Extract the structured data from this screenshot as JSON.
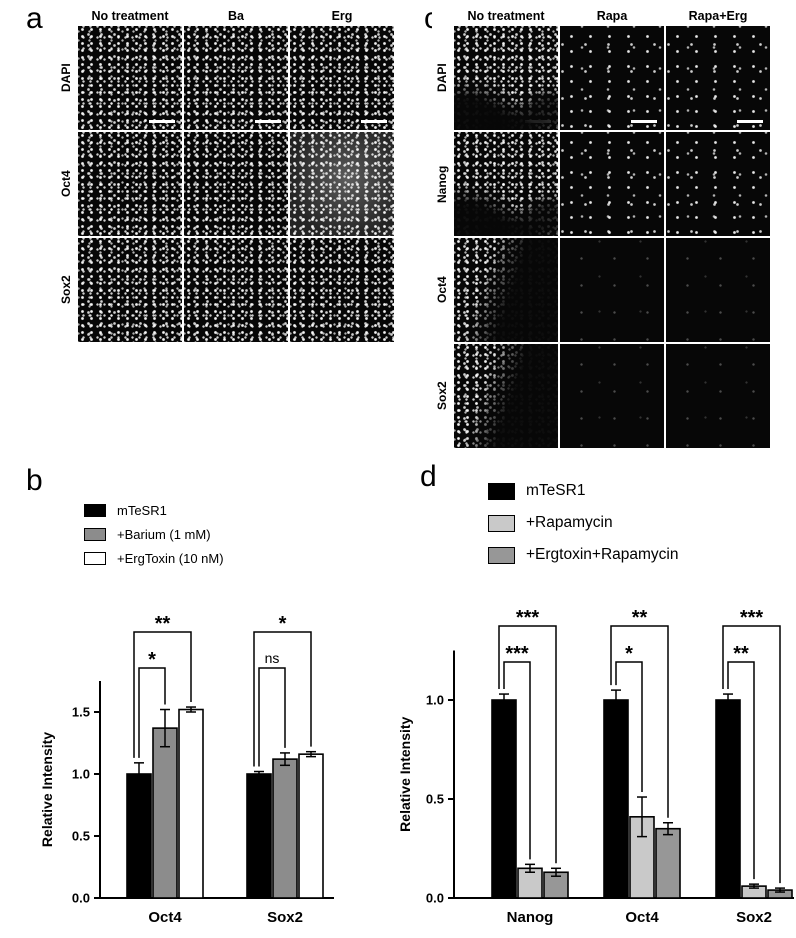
{
  "panel_labels": {
    "a": "a",
    "b": "b",
    "c": "c",
    "d": "d"
  },
  "panels": {
    "a": {
      "columns": [
        "No treatment",
        "Ba",
        "Erg"
      ],
      "rows": [
        {
          "label": "DAPI",
          "tiles": [
            {
              "pattern": "dense",
              "scalebar": true
            },
            {
              "pattern": "dense",
              "scalebar": true
            },
            {
              "pattern": "dense",
              "scalebar": true
            }
          ]
        },
        {
          "label": "Oct4",
          "tiles": [
            {
              "pattern": "dense",
              "scalebar": false
            },
            {
              "pattern": "dense",
              "scalebar": false
            },
            {
              "pattern": "bright",
              "scalebar": false
            }
          ]
        },
        {
          "label": "Sox2",
          "tiles": [
            {
              "pattern": "dense",
              "scalebar": false
            },
            {
              "pattern": "dense",
              "scalebar": false
            },
            {
              "pattern": "dense",
              "scalebar": false
            }
          ]
        }
      ]
    },
    "c": {
      "columns": [
        "No treatment",
        "Rapa",
        "Rapa+Erg"
      ],
      "rows": [
        {
          "label": "DAPI",
          "tiles": [
            {
              "pattern": "patchy",
              "scalebar": true
            },
            {
              "pattern": "sparse",
              "scalebar": true
            },
            {
              "pattern": "sparse",
              "scalebar": true
            }
          ]
        },
        {
          "label": "Nanog",
          "tiles": [
            {
              "pattern": "patchy",
              "scalebar": false
            },
            {
              "pattern": "sparse",
              "scalebar": false
            },
            {
              "pattern": "sparse",
              "scalebar": false
            }
          ]
        },
        {
          "label": "Oct4",
          "tiles": [
            {
              "pattern": "partial",
              "scalebar": false
            },
            {
              "pattern": "dark",
              "scalebar": false
            },
            {
              "pattern": "dark",
              "scalebar": false
            }
          ]
        },
        {
          "label": "Sox2",
          "tiles": [
            {
              "pattern": "partial",
              "scalebar": false
            },
            {
              "pattern": "dark",
              "scalebar": false
            },
            {
              "pattern": "dark",
              "scalebar": false
            }
          ]
        }
      ]
    }
  },
  "chart_data": [
    {
      "id": "b",
      "type": "bar",
      "panel": "b",
      "title": "",
      "xlabel": "",
      "ylabel": "Relative Intensity",
      "ylim": [
        0,
        1.75
      ],
      "yticks": [
        0,
        0.5,
        1,
        1.5
      ],
      "grid": false,
      "legend_position": "upper-left",
      "categories": [
        "Oct4",
        "Sox2"
      ],
      "series": [
        {
          "name": "mTeSR1",
          "color": "#000000",
          "values": [
            1.0,
            1.0
          ],
          "errors": [
            0.09,
            0.02
          ]
        },
        {
          "name": "+Barium (1 mM)",
          "color": "#8c8c8c",
          "values": [
            1.37,
            1.12
          ],
          "errors": [
            0.15,
            0.05
          ]
        },
        {
          "name": "+ErgToxin (10 nM)",
          "color": "#ffffff",
          "values": [
            1.52,
            1.16
          ],
          "errors": [
            0.02,
            0.02
          ]
        }
      ],
      "significance": [
        {
          "category": 0,
          "from": 0,
          "to": 1,
          "label": "*",
          "level": 1
        },
        {
          "category": 0,
          "from": 0,
          "to": 2,
          "label": "**",
          "level": 2
        },
        {
          "category": 1,
          "from": 0,
          "to": 1,
          "label": "ns",
          "level": 1
        },
        {
          "category": 1,
          "from": 0,
          "to": 2,
          "label": "*",
          "level": 2
        }
      ]
    },
    {
      "id": "d",
      "type": "bar",
      "panel": "d",
      "title": "",
      "xlabel": "",
      "ylabel": "Relative Intensity",
      "ylim": [
        0,
        1.25
      ],
      "yticks": [
        0,
        0.5,
        1
      ],
      "grid": false,
      "legend_position": "upper-left",
      "categories": [
        "Nanog",
        "Oct4",
        "Sox2"
      ],
      "series": [
        {
          "name": "mTeSR1",
          "color": "#000000",
          "values": [
            1.0,
            1.0,
            1.0
          ],
          "errors": [
            0.03,
            0.05,
            0.03
          ]
        },
        {
          "name": "+Rapamycin",
          "color": "#c9c9c9",
          "values": [
            0.15,
            0.41,
            0.06
          ],
          "errors": [
            0.02,
            0.1,
            0.01
          ]
        },
        {
          "name": "+Ergtoxin+Rapamycin",
          "color": "#979797",
          "values": [
            0.13,
            0.35,
            0.04
          ],
          "errors": [
            0.02,
            0.03,
            0.01
          ]
        }
      ],
      "significance": [
        {
          "category": 0,
          "from": 0,
          "to": 1,
          "label": "***",
          "level": 1
        },
        {
          "category": 0,
          "from": 0,
          "to": 2,
          "label": "***",
          "level": 2
        },
        {
          "category": 1,
          "from": 0,
          "to": 1,
          "label": "*",
          "level": 1
        },
        {
          "category": 1,
          "from": 0,
          "to": 2,
          "label": "**",
          "level": 2
        },
        {
          "category": 2,
          "from": 0,
          "to": 1,
          "label": "**",
          "level": 1
        },
        {
          "category": 2,
          "from": 0,
          "to": 2,
          "label": "***",
          "level": 2
        }
      ]
    }
  ]
}
